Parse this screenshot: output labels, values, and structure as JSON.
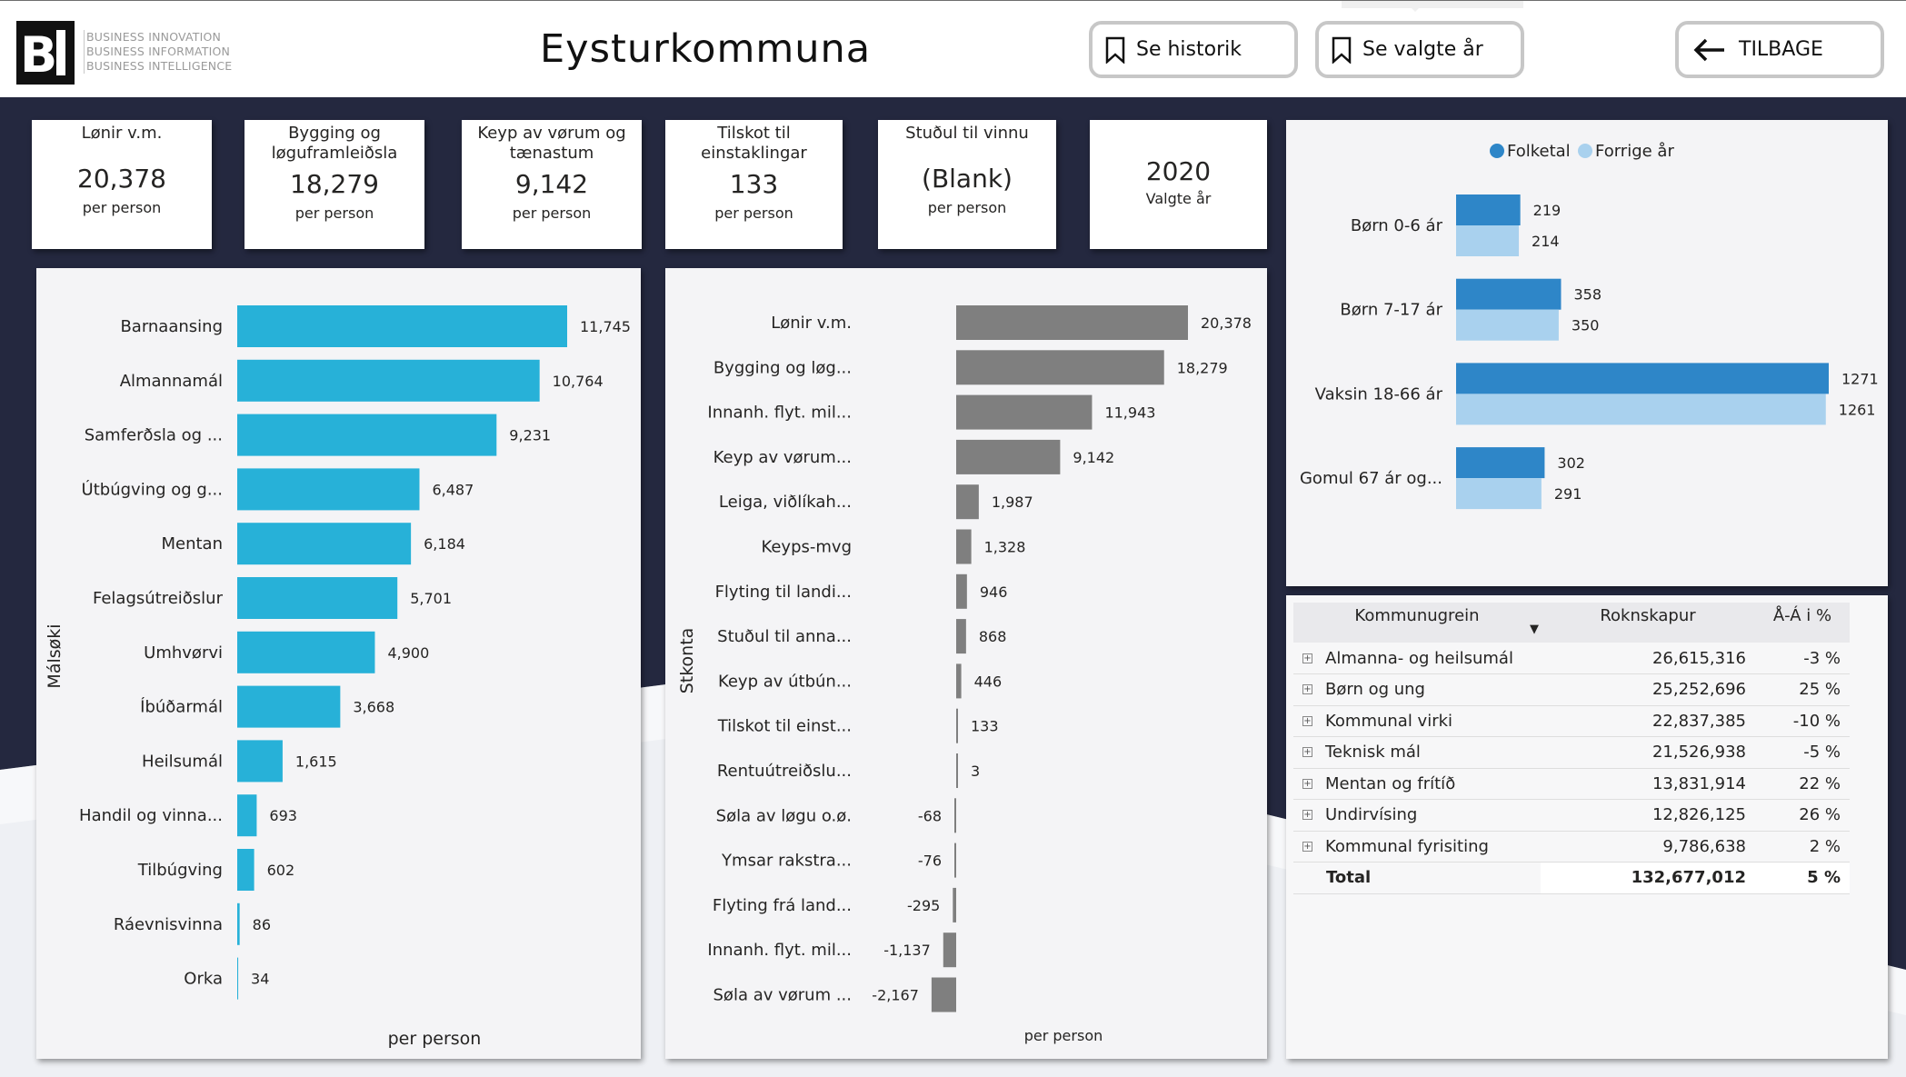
{
  "header": {
    "logo_lines": [
      "BUSINESS INNOVATION",
      "BUSINESS INFORMATION",
      "BUSINESS INTELLIGENCE"
    ],
    "title": "Eysturkommuna",
    "btn_history": "Se historik",
    "btn_selected_years": "Se valgte år",
    "btn_back": "TILBAGE"
  },
  "kpis": [
    {
      "label": "Lønir v.m.",
      "value": "20,378",
      "sub": "per person"
    },
    {
      "label": "Bygging og løguframleiðsla",
      "value": "18,279",
      "sub": "per person"
    },
    {
      "label": "Keyp av vørum og tænastum",
      "value": "9,142",
      "sub": "per person"
    },
    {
      "label": "Tilskot til einstaklingar",
      "value": "133",
      "sub": "per person"
    },
    {
      "label": "Stuðul til vinnu",
      "value": "(Blank)",
      "sub": "per person"
    },
    {
      "label": "",
      "value": "2020",
      "sub": "Valgte år"
    }
  ],
  "colors": {
    "cyan_bar": "#27b1d8",
    "grey_bar": "#7f7f7f",
    "folketal": "#2e86c8",
    "forrige_ar": "#a9d1ee",
    "background": "#24283f"
  },
  "chart_data": [
    {
      "type": "bar",
      "orientation": "horizontal",
      "categories": [
        "Barnaansing",
        "Almannamál",
        "Samferðsla og ...",
        "Útbúgving og g...",
        "Mentan",
        "Felagsútreiðslur",
        "Umhvørvi",
        "Íbúðarmál",
        "Heilsumál",
        "Handil og vinna...",
        "Tilbúgving",
        "Ráevnisvinna",
        "Orka"
      ],
      "values": [
        11745,
        10764,
        9231,
        6487,
        6184,
        5701,
        4900,
        3668,
        1615,
        693,
        602,
        86,
        34
      ],
      "value_labels": [
        "11,745",
        "10,764",
        "9,231",
        "6,487",
        "6,184",
        "5,701",
        "4,900",
        "3,668",
        "1,615",
        "693",
        "602",
        "86",
        "34"
      ],
      "ylabel": "Málsøki",
      "xlabel": "per person",
      "xlim": [
        0,
        11745
      ]
    },
    {
      "type": "bar",
      "orientation": "horizontal",
      "categories": [
        "Lønir v.m.",
        "Bygging og løg...",
        "Innanh. flyt. mil...",
        "Keyp av vørum...",
        "Leiga, viðlíkah...",
        "Keyps-mvg",
        "Flyting til landi...",
        "Stuðul til anna...",
        "Keyp av útbún...",
        "Tilskot til einst...",
        "Rentuútreiðslu...",
        "Søla av løgu o.ø.",
        "Ymsar rakstra...",
        "Flyting frá land...",
        "Innanh. flyt. mil...",
        "Søla av vørum ..."
      ],
      "values": [
        20378,
        18279,
        11943,
        9142,
        1987,
        1328,
        946,
        868,
        446,
        133,
        3,
        -68,
        -76,
        -295,
        -1137,
        -2167
      ],
      "value_labels": [
        "20,378",
        "18,279",
        "11,943",
        "9,142",
        "1,987",
        "1,328",
        "946",
        "868",
        "446",
        "133",
        "3",
        "-68",
        "-76",
        "-295",
        "-1,137",
        "-2,167"
      ],
      "ylabel": "Stkonta",
      "xlabel": "per person",
      "xlim": [
        -2167,
        20378
      ]
    },
    {
      "type": "bar",
      "orientation": "horizontal",
      "categories": [
        "Børn 0-6 ár",
        "Børn 7-17 ár",
        "Vaksin 18-66 ár",
        "Gomul 67 ár og..."
      ],
      "series": [
        {
          "name": "Folketal",
          "values": [
            219,
            358,
            1271,
            302
          ]
        },
        {
          "name": "Forrige år",
          "values": [
            214,
            350,
            1261,
            291
          ]
        }
      ],
      "legend": "top-center",
      "xlim": [
        0,
        1271
      ]
    }
  ],
  "matrix": {
    "headers": [
      "Kommunugrein",
      "Roknskapur",
      "Å-Á i %"
    ],
    "rows": [
      {
        "name": "Almanna- og heilsumál",
        "value": "26,615,316",
        "pct": "-3 %"
      },
      {
        "name": "Børn og ung",
        "value": "25,252,696",
        "pct": "25 %"
      },
      {
        "name": "Kommunal virki",
        "value": "22,837,385",
        "pct": "-10 %"
      },
      {
        "name": "Teknisk mál",
        "value": "21,526,938",
        "pct": "-5 %"
      },
      {
        "name": "Mentan og frítíð",
        "value": "13,831,914",
        "pct": "22 %"
      },
      {
        "name": "Undirvísing",
        "value": "12,826,125",
        "pct": "26 %"
      },
      {
        "name": "Kommunal fyrisiting",
        "value": "9,786,638",
        "pct": "2 %"
      }
    ],
    "total": {
      "name": "Total",
      "value": "132,677,012",
      "pct": "5 %"
    }
  }
}
